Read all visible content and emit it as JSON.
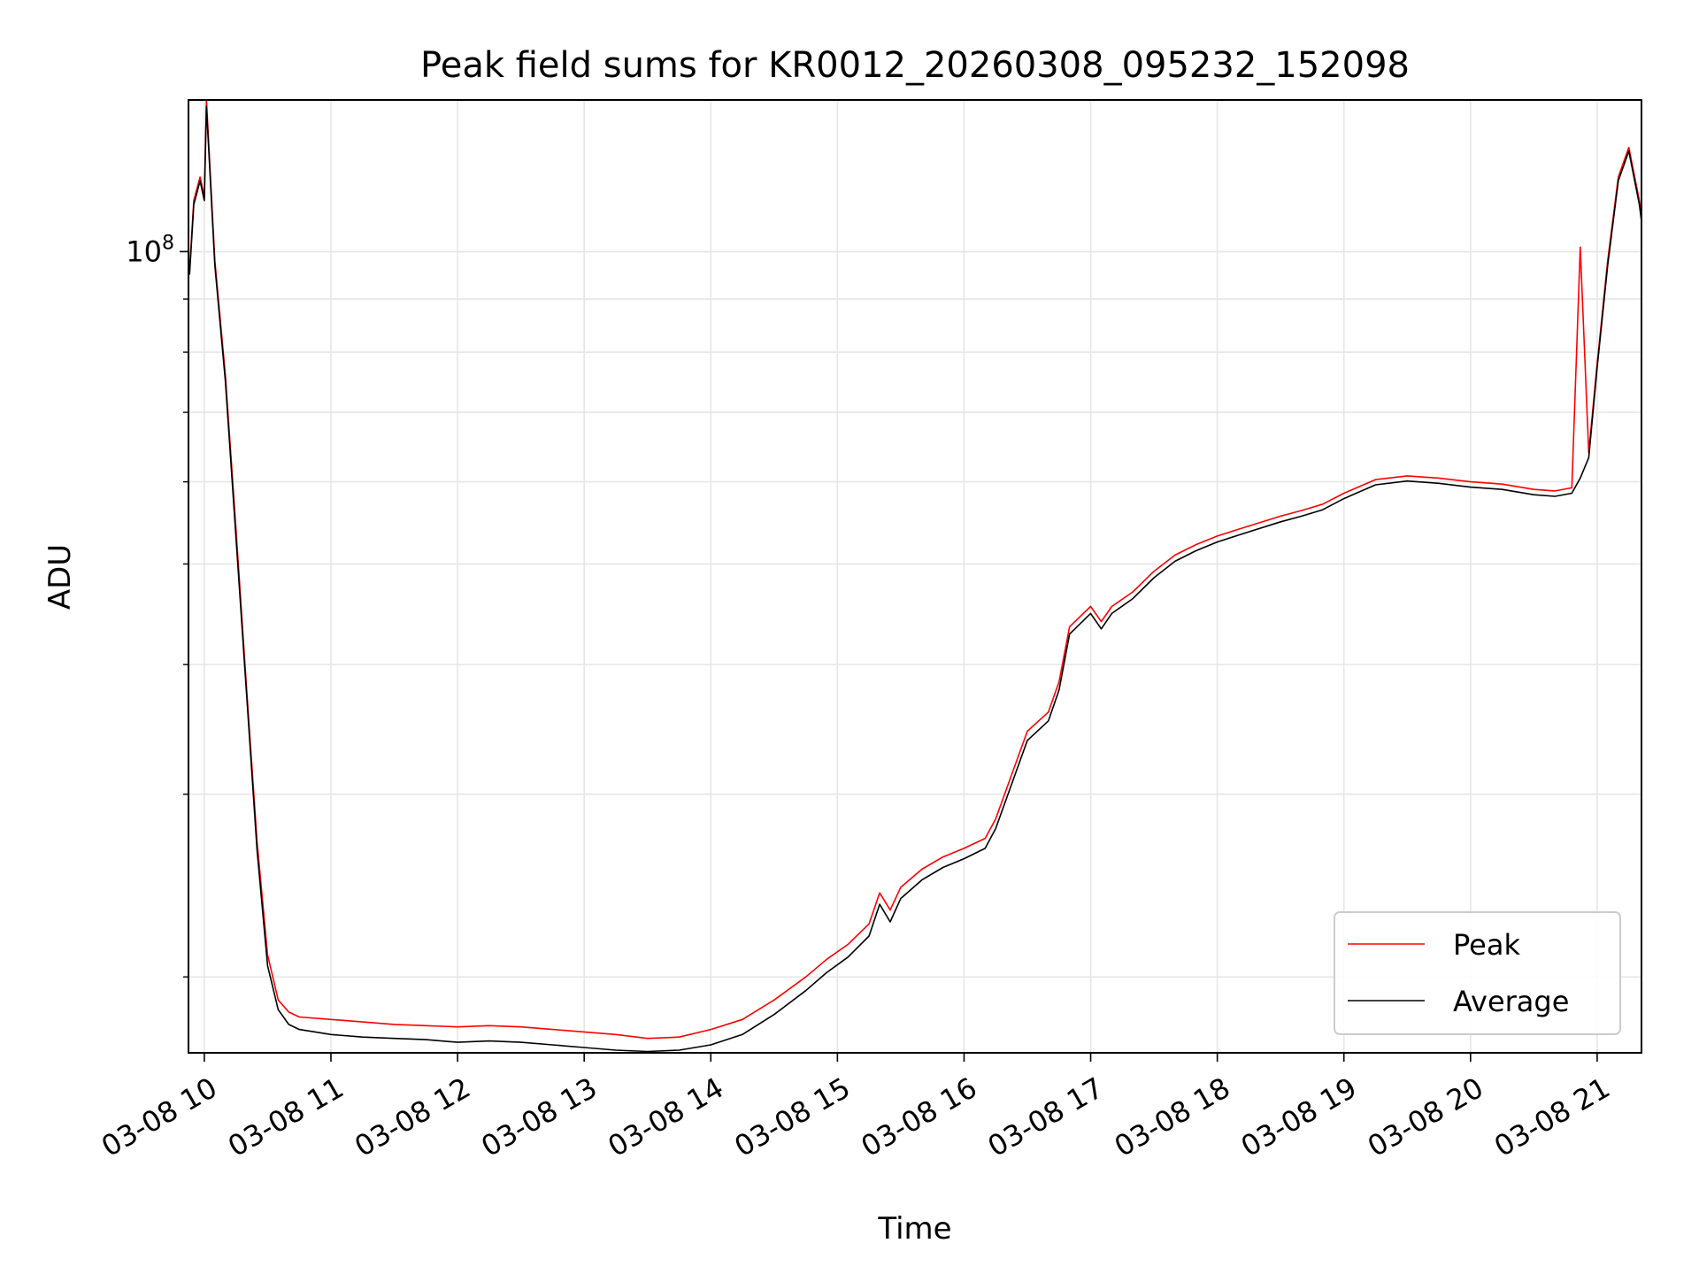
{
  "chart_data": {
    "type": "line",
    "title": "Peak field sums for KR0012_20260308_095232_152098",
    "xlabel": "Time",
    "ylabel": "ADU",
    "yscale": "log",
    "ylim": [
      16900000,
      140000000
    ],
    "y_major_tick_label": "10",
    "y_major_tick_exponent": "8",
    "xlim_hours": [
      9.875,
      21.35
    ],
    "x_tick_labels": [
      "03-08 10",
      "03-08 11",
      "03-08 12",
      "03-08 13",
      "03-08 14",
      "03-08 15",
      "03-08 16",
      "03-08 17",
      "03-08 18",
      "03-08 19",
      "03-08 20",
      "03-08 21"
    ],
    "grid": true,
    "legend": "lower-right",
    "colors": {
      "Peak": "#ff0000",
      "Average": "#000000",
      "grid": "#e6e6e6"
    },
    "series": [
      {
        "name": "Peak",
        "x": [
          "09:53",
          "09:55",
          "09:58",
          "10:00",
          "10:01",
          "10:05",
          "10:10",
          "10:15",
          "10:20",
          "10:25",
          "10:30",
          "10:35",
          "10:40",
          "10:45",
          "11:00",
          "11:15",
          "11:30",
          "11:45",
          "12:00",
          "12:15",
          "12:30",
          "12:45",
          "13:00",
          "13:15",
          "13:30",
          "13:45",
          "14:00",
          "14:15",
          "14:30",
          "14:45",
          "14:55",
          "15:05",
          "15:15",
          "15:20",
          "15:25",
          "15:30",
          "15:40",
          "15:50",
          "16:00",
          "16:10",
          "16:15",
          "16:30",
          "16:40",
          "16:45",
          "16:50",
          "17:00",
          "17:05",
          "17:10",
          "17:20",
          "17:30",
          "17:40",
          "17:50",
          "18:00",
          "18:10",
          "18:30",
          "18:40",
          "18:50",
          "19:00",
          "19:15",
          "19:30",
          "19:45",
          "20:00",
          "20:15",
          "20:30",
          "20:40",
          "20:48",
          "20:52",
          "20:56",
          "21:00",
          "21:05",
          "21:10",
          "21:15",
          "21:20",
          "21:22"
        ],
        "values": [
          96000000,
          112000000,
          118000000,
          113000000,
          140000000,
          98000000,
          76000000,
          54000000,
          38000000,
          27000000,
          21000000,
          19000000,
          18500000,
          18300000,
          18200000,
          18100000,
          18000000,
          17950000,
          17900000,
          17950000,
          17900000,
          17800000,
          17700000,
          17600000,
          17450000,
          17500000,
          17800000,
          18200000,
          19000000,
          20000000,
          20800000,
          21500000,
          22500000,
          24100000,
          23200000,
          24400000,
          25400000,
          26100000,
          26600000,
          27200000,
          28400000,
          34500000,
          36000000,
          38500000,
          43500000,
          45500000,
          44000000,
          45500000,
          47000000,
          49200000,
          51000000,
          52200000,
          53200000,
          54000000,
          55600000,
          56300000,
          57100000,
          58500000,
          60300000,
          60800000,
          60500000,
          60000000,
          59700000,
          59000000,
          58800000,
          59200000,
          101000000,
          64000000,
          78000000,
          98000000,
          118000000,
          126000000,
          112000000,
          104000000
        ]
      },
      {
        "name": "Average",
        "x": [
          "09:53",
          "09:55",
          "09:58",
          "10:00",
          "10:01",
          "10:05",
          "10:10",
          "10:15",
          "10:20",
          "10:25",
          "10:30",
          "10:35",
          "10:40",
          "10:45",
          "11:00",
          "11:15",
          "11:30",
          "11:45",
          "12:00",
          "12:15",
          "12:30",
          "12:45",
          "13:00",
          "13:15",
          "13:30",
          "13:45",
          "14:00",
          "14:15",
          "14:30",
          "14:45",
          "14:55",
          "15:05",
          "15:15",
          "15:20",
          "15:25",
          "15:30",
          "15:40",
          "15:50",
          "16:00",
          "16:10",
          "16:15",
          "16:30",
          "16:40",
          "16:45",
          "16:50",
          "17:00",
          "17:05",
          "17:10",
          "17:20",
          "17:30",
          "17:40",
          "17:50",
          "18:00",
          "18:10",
          "18:30",
          "18:40",
          "18:50",
          "19:00",
          "19:15",
          "19:30",
          "19:45",
          "20:00",
          "20:15",
          "20:30",
          "20:40",
          "20:48",
          "20:52",
          "20:56",
          "21:00",
          "21:05",
          "21:10",
          "21:15",
          "21:20",
          "21:22"
        ],
        "values": [
          95000000,
          111000000,
          117000000,
          112000000,
          138000000,
          97000000,
          75000000,
          53000000,
          37500000,
          26500000,
          20500000,
          18600000,
          18000000,
          17800000,
          17600000,
          17500000,
          17450000,
          17400000,
          17300000,
          17350000,
          17300000,
          17200000,
          17100000,
          17000000,
          16950000,
          17000000,
          17200000,
          17600000,
          18400000,
          19400000,
          20200000,
          20900000,
          21900000,
          23500000,
          22600000,
          23800000,
          24800000,
          25500000,
          26000000,
          26600000,
          27800000,
          33800000,
          35300000,
          37800000,
          42800000,
          44800000,
          43300000,
          44800000,
          46300000,
          48500000,
          50300000,
          51500000,
          52500000,
          53300000,
          54900000,
          55600000,
          56400000,
          57800000,
          59600000,
          60100000,
          59800000,
          59300000,
          59000000,
          58300000,
          58100000,
          58500000,
          60500000,
          63300000,
          77300000,
          97000000,
          117000000,
          125000000,
          111000000,
          103000000
        ]
      }
    ]
  }
}
